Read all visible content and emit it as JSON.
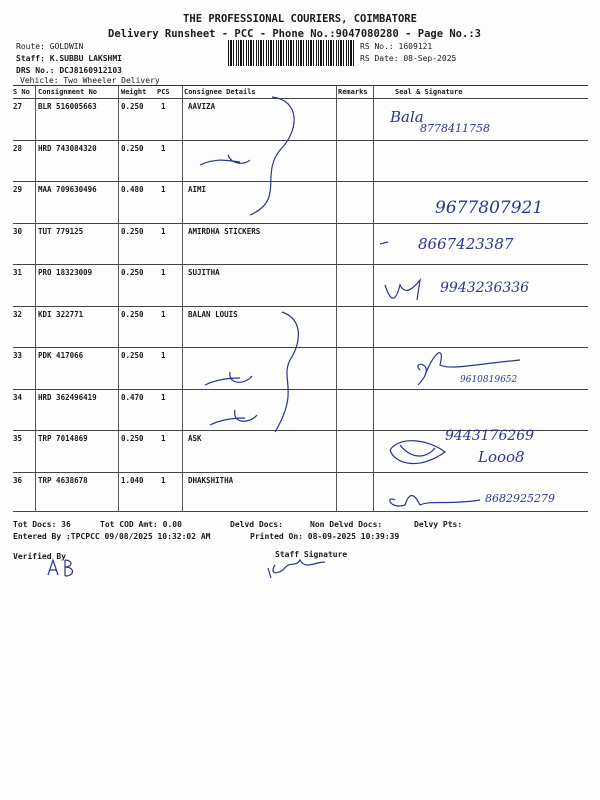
{
  "header": {
    "title": "THE PROFESSIONAL COURIERS, COIMBATORE",
    "subtitle": "Delivery Runsheet - PCC - Phone No.:9047080280 - Page No.:3",
    "route": "Route: GOLDWIN",
    "staff": "Staff: K.SUBBU LAKSHMI",
    "drs": "DRS No.: DCJ8160912103",
    "vehicle": "Vehicle: Two Wheeler Delivery",
    "rs_no": "RS No.: 1609121",
    "rs_date": "RS Date: 08-Sep-2025"
  },
  "columns": [
    "S No",
    "Consignment No",
    "Weight",
    "PCS",
    "Consignee Details",
    "Remarks",
    "Seal & Signature"
  ],
  "rows": [
    {
      "sno": "27",
      "cn": "BLR 516005663",
      "wt": "0.250",
      "pcs": "1",
      "consignee": "AAVIZA"
    },
    {
      "sno": "28",
      "cn": "HRD 743084320",
      "wt": "0.250",
      "pcs": "1",
      "consignee": ""
    },
    {
      "sno": "29",
      "cn": "MAA 709630496",
      "wt": "0.480",
      "pcs": "1",
      "consignee": "AIMI"
    },
    {
      "sno": "30",
      "cn": "TUT 779125",
      "wt": "0.250",
      "pcs": "1",
      "consignee": "AMIRDHA STICKERS"
    },
    {
      "sno": "31",
      "cn": "PRO 18323009",
      "wt": "0.250",
      "pcs": "1",
      "consignee": "SUJITHA"
    },
    {
      "sno": "32",
      "cn": "KDI 322771",
      "wt": "0.250",
      "pcs": "1",
      "consignee": "BALAN LOUIS"
    },
    {
      "sno": "33",
      "cn": "PDK 417066",
      "wt": "0.250",
      "pcs": "1",
      "consignee": ""
    },
    {
      "sno": "34",
      "cn": "HRD 362496419",
      "wt": "0.470",
      "pcs": "1",
      "consignee": ""
    },
    {
      "sno": "35",
      "cn": "TRP 7014869",
      "wt": "0.250",
      "pcs": "1",
      "consignee": "ASK"
    },
    {
      "sno": "36",
      "cn": "TRP 4638678",
      "wt": "1.040",
      "pcs": "1",
      "consignee": "DHAKSHITHA"
    }
  ],
  "handwriting": [
    "Bala",
    "8778411758",
    "9677807921",
    "8667423387",
    "9943236336",
    "9610819652",
    "9443176269",
    "Looo8",
    "8682925279"
  ],
  "footer": {
    "tot_docs": "Tot Docs:  36",
    "tot_cod": "Tot COD Amt:    0.00",
    "delvd": "Delvd Docs:",
    "non_delvd": "Non Delvd Docs:",
    "delvy_pts": "Delvy Pts:",
    "entered": "Entered By :TPCPCC 09/08/2025 10:32:02 AM",
    "printed": "Printed On: 08-09-2025 10:39:39",
    "verified": "Verified By",
    "staff_sig": "Staff Signature",
    "verified_sig": "A B",
    "staff_sig_hw": "K Subbulakshmi"
  }
}
